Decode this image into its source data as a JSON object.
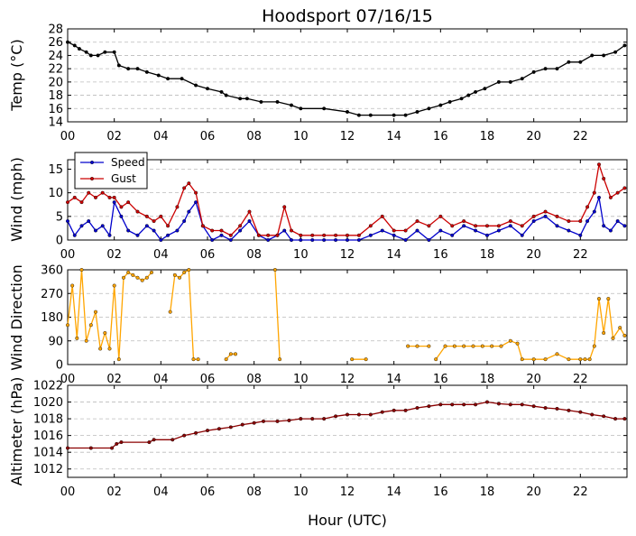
{
  "title": "Hoodsport 07/16/15",
  "xlabel": "Hour (UTC)",
  "x_tick_labels": [
    "00",
    "02",
    "04",
    "06",
    "08",
    "10",
    "12",
    "14",
    "16",
    "18",
    "20",
    "22"
  ],
  "colors": {
    "temp": "#000000",
    "speed": "#0000cc",
    "gust": "#cc0000",
    "direction": "#ffa500",
    "altimeter": "#8b0000",
    "grid": "#bbbbbb"
  },
  "chart_data": [
    {
      "type": "line",
      "ylabel": "Temp (°C)",
      "xlim": [
        0,
        24
      ],
      "ylim": [
        14,
        28
      ],
      "yticks": [
        14,
        16,
        18,
        20,
        22,
        24,
        26,
        28
      ],
      "grid": "horizontal dashed",
      "series": [
        {
          "color": "#000000",
          "x": [
            0.0,
            0.3,
            0.5,
            0.8,
            1.0,
            1.3,
            1.6,
            2.0,
            2.2,
            2.6,
            3.0,
            3.4,
            3.9,
            4.3,
            4.9,
            5.5,
            6.0,
            6.6,
            6.8,
            7.4,
            7.7,
            8.3,
            9.0,
            9.6,
            10.0,
            11.0,
            12.0,
            12.5,
            13.0,
            14.0,
            14.5,
            15.0,
            15.5,
            16.0,
            16.4,
            16.9,
            17.2,
            17.5,
            17.9,
            18.5,
            19.0,
            19.5,
            20.0,
            20.5,
            21.0,
            21.5,
            22.0,
            22.5,
            23.0,
            23.5,
            23.9
          ],
          "y": [
            26,
            25.5,
            25,
            24.5,
            24,
            24,
            24.5,
            24.5,
            22.5,
            22,
            22,
            21.5,
            21,
            20.5,
            20.5,
            19.5,
            19,
            18.5,
            18,
            17.5,
            17.5,
            17,
            17,
            16.5,
            16,
            16,
            15.5,
            15,
            15,
            15,
            15,
            15.5,
            16,
            16.5,
            17,
            17.5,
            18,
            18.5,
            19,
            20,
            20,
            20.5,
            21.5,
            22,
            22,
            23,
            23,
            24,
            24,
            24.5,
            25.5
          ]
        }
      ]
    },
    {
      "type": "line",
      "ylabel": "Wind (mph)",
      "xlim": [
        0,
        24
      ],
      "ylim": [
        0,
        17
      ],
      "yticks": [
        0,
        5,
        10,
        15
      ],
      "grid": "horizontal dashed",
      "legend": "top-left",
      "series": [
        {
          "name": "Speed",
          "color": "#0000cc",
          "x": [
            0.0,
            0.3,
            0.6,
            0.9,
            1.2,
            1.5,
            1.8,
            2.0,
            2.3,
            2.6,
            3.0,
            3.4,
            3.7,
            4.0,
            4.3,
            4.7,
            5.0,
            5.2,
            5.5,
            5.8,
            6.2,
            6.6,
            7.0,
            7.4,
            7.8,
            8.2,
            8.6,
            9.0,
            9.3,
            9.6,
            10.0,
            10.5,
            11.0,
            11.5,
            12.0,
            12.5,
            13.0,
            13.5,
            14.0,
            14.5,
            15.0,
            15.5,
            16.0,
            16.5,
            17.0,
            17.5,
            18.0,
            18.5,
            19.0,
            19.5,
            20.0,
            20.5,
            21.0,
            21.5,
            22.0,
            22.3,
            22.6,
            22.8,
            23.0,
            23.3,
            23.6,
            23.9
          ],
          "y": [
            4,
            1,
            3,
            4,
            2,
            3,
            1,
            8,
            5,
            2,
            1,
            3,
            2,
            0,
            1,
            2,
            4,
            6,
            8,
            3,
            0,
            1,
            0,
            2,
            4,
            1,
            0,
            1,
            2,
            0,
            0,
            0,
            0,
            0,
            0,
            0,
            1,
            2,
            1,
            0,
            2,
            0,
            2,
            1,
            3,
            2,
            1,
            2,
            3,
            1,
            4,
            5,
            3,
            2,
            1,
            4,
            6,
            9,
            3,
            2,
            4,
            3
          ]
        },
        {
          "name": "Gust",
          "color": "#cc0000",
          "x": [
            0.0,
            0.3,
            0.6,
            0.9,
            1.2,
            1.5,
            1.8,
            2.0,
            2.3,
            2.6,
            3.0,
            3.4,
            3.7,
            4.0,
            4.3,
            4.7,
            5.0,
            5.2,
            5.5,
            5.8,
            6.2,
            6.6,
            7.0,
            7.4,
            7.8,
            8.2,
            8.6,
            9.0,
            9.3,
            9.6,
            10.0,
            10.5,
            11.0,
            11.5,
            12.0,
            12.5,
            13.0,
            13.5,
            14.0,
            14.5,
            15.0,
            15.5,
            16.0,
            16.5,
            17.0,
            17.5,
            18.0,
            18.5,
            19.0,
            19.5,
            20.0,
            20.5,
            21.0,
            21.5,
            22.0,
            22.3,
            22.6,
            22.8,
            23.0,
            23.3,
            23.6,
            23.9
          ],
          "y": [
            8,
            9,
            8,
            10,
            9,
            10,
            9,
            9,
            7,
            8,
            6,
            5,
            4,
            5,
            3,
            7,
            11,
            12,
            10,
            3,
            2,
            2,
            1,
            3,
            6,
            1,
            1,
            1,
            7,
            2,
            1,
            1,
            1,
            1,
            1,
            1,
            3,
            5,
            2,
            2,
            4,
            3,
            5,
            3,
            4,
            3,
            3,
            3,
            4,
            3,
            5,
            6,
            5,
            4,
            4,
            7,
            10,
            16,
            13,
            9,
            10,
            11
          ]
        }
      ]
    },
    {
      "type": "line",
      "ylabel": "Wind Direction",
      "xlim": [
        0,
        24
      ],
      "ylim": [
        0,
        360
      ],
      "yticks": [
        0,
        90,
        180,
        270,
        360
      ],
      "grid": "horizontal dashed",
      "series": [
        {
          "color": "#ffa500",
          "x": [
            0.0,
            0.2,
            0.4,
            0.6,
            0.8,
            1.0,
            1.2,
            1.4,
            1.6,
            1.8,
            2.0,
            2.2,
            2.4,
            2.6,
            2.8,
            3.0,
            3.2,
            3.4,
            3.6,
            null,
            4.4,
            4.6,
            4.8,
            5.0,
            5.2,
            5.4,
            5.6,
            null,
            6.8,
            7.0,
            7.2,
            null,
            8.9,
            9.1,
            null,
            12.2,
            12.8,
            null,
            14.6,
            15.0,
            15.5,
            null,
            15.8,
            16.2,
            16.6,
            17.0,
            17.4,
            17.8,
            18.2,
            18.6,
            19.0,
            19.3,
            19.5,
            20.0,
            20.5,
            21.0,
            21.5,
            22.0,
            22.2,
            22.4,
            22.6,
            22.8,
            23.0,
            23.2,
            23.4,
            23.7,
            23.9
          ],
          "y": [
            150,
            300,
            100,
            360,
            90,
            150,
            200,
            60,
            120,
            60,
            300,
            20,
            330,
            350,
            340,
            330,
            320,
            330,
            350,
            null,
            200,
            340,
            330,
            350,
            360,
            20,
            20,
            null,
            20,
            40,
            40,
            null,
            360,
            20,
            null,
            20,
            20,
            null,
            70,
            70,
            70,
            null,
            20,
            70,
            70,
            70,
            70,
            70,
            70,
            70,
            90,
            80,
            20,
            20,
            20,
            40,
            20,
            20,
            20,
            20,
            70,
            250,
            120,
            250,
            100,
            140,
            110
          ]
        }
      ]
    },
    {
      "type": "line",
      "ylabel": "Altimeter (hPa)",
      "xlim": [
        0,
        24
      ],
      "ylim": [
        1011,
        1022
      ],
      "yticks": [
        1012,
        1014,
        1016,
        1018,
        1020,
        1022
      ],
      "grid": "horizontal dashed",
      "series": [
        {
          "color": "#8b0000",
          "x": [
            0.0,
            1.0,
            1.9,
            2.1,
            2.3,
            3.5,
            3.7,
            4.5,
            5.0,
            5.5,
            6.0,
            6.5,
            7.0,
            7.5,
            8.0,
            8.4,
            9.0,
            9.5,
            10.0,
            10.5,
            11.0,
            11.5,
            12.0,
            12.5,
            13.0,
            13.5,
            14.0,
            14.5,
            15.0,
            15.5,
            16.0,
            16.5,
            17.0,
            17.5,
            18.0,
            18.5,
            19.0,
            19.5,
            20.0,
            20.5,
            21.0,
            21.5,
            22.0,
            22.5,
            23.0,
            23.5,
            23.9
          ],
          "y": [
            1014.5,
            1014.5,
            1014.5,
            1015,
            1015.2,
            1015.2,
            1015.5,
            1015.5,
            1016,
            1016.3,
            1016.6,
            1016.8,
            1017,
            1017.3,
            1017.5,
            1017.7,
            1017.7,
            1017.8,
            1018,
            1018,
            1018,
            1018.3,
            1018.5,
            1018.5,
            1018.5,
            1018.8,
            1019,
            1019,
            1019.3,
            1019.5,
            1019.7,
            1019.7,
            1019.7,
            1019.7,
            1020,
            1019.8,
            1019.7,
            1019.7,
            1019.5,
            1019.3,
            1019.2,
            1019,
            1018.8,
            1018.5,
            1018.3,
            1018,
            1018
          ]
        }
      ]
    }
  ]
}
